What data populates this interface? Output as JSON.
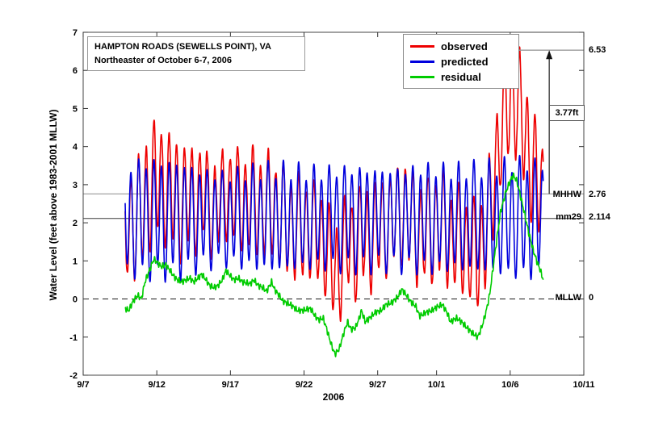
{
  "chart_data": {
    "type": "line",
    "title": "HAMPTON ROADS (SEWELLS POINT), VA",
    "subtitle": "Northeaster of October 6-7, 2006",
    "xlabel": "2006",
    "ylabel": "Water Level (feet above 1983-2001 MLLW)",
    "grid": false,
    "x_axis": {
      "tick_labels": [
        "9/7",
        "9/12",
        "9/17",
        "9/22",
        "9/27",
        "10/1",
        "10/6",
        "10/11"
      ],
      "tick_days": [
        0,
        5,
        10,
        15,
        20,
        24,
        29,
        34
      ],
      "range_days": [
        0,
        34
      ]
    },
    "y_axis": {
      "ticks": [
        -2,
        -1,
        0,
        1,
        2,
        3,
        4,
        5,
        6,
        7
      ],
      "range": [
        -2,
        7
      ]
    },
    "legend": {
      "position": "top-center",
      "items": [
        {
          "label": "observed",
          "color": "#ee0000"
        },
        {
          "label": "predicted",
          "color": "#0000dd"
        },
        {
          "label": "residual",
          "color": "#00cc00"
        }
      ]
    },
    "data_span_days": [
      2.85,
      31.25
    ],
    "series": [
      {
        "name": "observed",
        "color": "#ee0000",
        "composition": "predicted_plus_residual"
      },
      {
        "name": "predicted",
        "color": "#0000dd",
        "tide_model": {
          "mean_level": 2.114,
          "m2_period_days": 0.5175,
          "m2_phase_peak_day": 4.8,
          "m2_amplitude_points": [
            [
              2.85,
              1.35
            ],
            [
              3.5,
              1.4
            ],
            [
              5.0,
              1.45
            ],
            [
              6.5,
              1.4
            ],
            [
              8.0,
              1.2
            ],
            [
              9.5,
              1.1
            ],
            [
              11.0,
              1.2
            ],
            [
              13.0,
              1.3
            ],
            [
              14.5,
              1.25
            ],
            [
              16.0,
              1.2
            ],
            [
              17.5,
              1.25
            ],
            [
              19.0,
              1.25
            ],
            [
              20.5,
              1.2
            ],
            [
              22.0,
              1.25
            ],
            [
              23.5,
              1.3
            ],
            [
              25.0,
              1.25
            ],
            [
              26.5,
              1.3
            ],
            [
              28.0,
              1.35
            ],
            [
              29.5,
              1.45
            ],
            [
              31.3,
              1.4
            ]
          ],
          "diurnal_amplitude": 0.25,
          "diurnal_period_days": 1.0758,
          "diurnal_phase_peak_day": 5.0
        }
      },
      {
        "name": "residual",
        "color": "#00cc00",
        "points": [
          [
            2.85,
            -0.25
          ],
          [
            3.1,
            -0.3
          ],
          [
            3.4,
            -0.05
          ],
          [
            3.7,
            0.1
          ],
          [
            3.95,
            0.0
          ],
          [
            4.2,
            0.45
          ],
          [
            4.5,
            0.75
          ],
          [
            4.8,
            1.05
          ],
          [
            5.05,
            0.95
          ],
          [
            5.3,
            0.85
          ],
          [
            5.6,
            0.9
          ],
          [
            5.9,
            0.75
          ],
          [
            6.15,
            0.6
          ],
          [
            6.4,
            0.5
          ],
          [
            6.7,
            0.45
          ],
          [
            7.25,
            0.55
          ],
          [
            7.5,
            0.45
          ],
          [
            7.8,
            0.55
          ],
          [
            8.05,
            0.65
          ],
          [
            8.35,
            0.5
          ],
          [
            8.6,
            0.35
          ],
          [
            8.9,
            0.3
          ],
          [
            9.15,
            0.35
          ],
          [
            9.45,
            0.5
          ],
          [
            9.7,
            0.75
          ],
          [
            10.0,
            0.6
          ],
          [
            10.25,
            0.5
          ],
          [
            10.55,
            0.55
          ],
          [
            10.8,
            0.45
          ],
          [
            11.35,
            0.4
          ],
          [
            11.6,
            0.5
          ],
          [
            11.9,
            0.35
          ],
          [
            12.2,
            0.3
          ],
          [
            12.45,
            0.2
          ],
          [
            12.8,
            0.45
          ],
          [
            13.0,
            0.25
          ],
          [
            13.3,
            0.1
          ],
          [
            13.55,
            -0.05
          ],
          [
            13.8,
            -0.1
          ],
          [
            14.1,
            -0.15
          ],
          [
            14.55,
            -0.3
          ],
          [
            14.9,
            -0.3
          ],
          [
            15.45,
            -0.25
          ],
          [
            15.75,
            -0.45
          ],
          [
            16.0,
            -0.55
          ],
          [
            16.3,
            -0.5
          ],
          [
            16.55,
            -0.8
          ],
          [
            16.85,
            -1.2
          ],
          [
            17.1,
            -1.45
          ],
          [
            17.4,
            -1.3
          ],
          [
            17.65,
            -0.95
          ],
          [
            17.95,
            -0.6
          ],
          [
            18.2,
            -0.8
          ],
          [
            18.5,
            -0.75
          ],
          [
            18.75,
            -0.5
          ],
          [
            18.9,
            -0.3
          ],
          [
            19.15,
            -0.6
          ],
          [
            19.45,
            -0.5
          ],
          [
            19.85,
            -0.35
          ],
          [
            20.25,
            -0.3
          ],
          [
            20.55,
            -0.15
          ],
          [
            20.95,
            -0.1
          ],
          [
            21.35,
            0.05
          ],
          [
            21.65,
            0.25
          ],
          [
            21.95,
            0.1
          ],
          [
            22.2,
            -0.05
          ],
          [
            22.6,
            -0.2
          ],
          [
            22.85,
            -0.45
          ],
          [
            23.3,
            -0.35
          ],
          [
            23.7,
            -0.3
          ],
          [
            24.05,
            -0.2
          ],
          [
            24.4,
            -0.15
          ],
          [
            24.7,
            -0.35
          ],
          [
            24.95,
            -0.6
          ],
          [
            25.35,
            -0.5
          ],
          [
            25.7,
            -0.6
          ],
          [
            26.05,
            -0.75
          ],
          [
            26.45,
            -0.9
          ],
          [
            26.8,
            -1.0
          ],
          [
            27.1,
            -0.7
          ],
          [
            27.35,
            -0.35
          ],
          [
            27.6,
            0.1
          ],
          [
            27.8,
            0.7
          ],
          [
            28.1,
            1.6
          ],
          [
            28.35,
            2.3
          ],
          [
            28.7,
            2.8
          ],
          [
            29.0,
            3.1
          ],
          [
            29.2,
            3.25
          ],
          [
            29.45,
            3.1
          ],
          [
            29.7,
            2.7
          ],
          [
            30.0,
            2.2
          ],
          [
            30.25,
            1.75
          ],
          [
            30.55,
            1.3
          ],
          [
            30.8,
            1.0
          ],
          [
            31.05,
            0.75
          ],
          [
            31.25,
            0.5
          ]
        ],
        "jitter_components": [
          [
            0.05,
            34,
            0
          ],
          [
            0.035,
            57,
            1.3
          ]
        ]
      }
    ],
    "reference_lines": [
      {
        "label": "MHHW",
        "value": 2.76,
        "display_value": "2.76",
        "style": "solid",
        "color": "#8c8c8c"
      },
      {
        "label": "mm29",
        "value": 2.114,
        "display_value": "2.114",
        "style": "solid",
        "color": "#3a3a3a"
      },
      {
        "label": "MLLW",
        "value": 0,
        "display_value": "0",
        "style": "dashed",
        "color": "#1a1a1a"
      }
    ],
    "annotations": {
      "peak_value_label": "6.53",
      "peak_level": 6.53,
      "peak_line_from_day": 29.3,
      "surge_label": "3.77ft",
      "arrow_day": 31.65,
      "arrow_from_level": 2.76,
      "arrow_to_level": 6.53
    }
  }
}
